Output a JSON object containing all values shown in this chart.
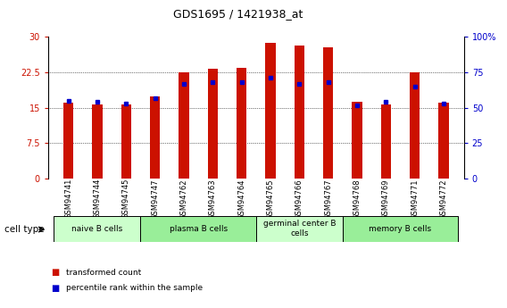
{
  "title": "GDS1695 / 1421938_at",
  "samples": [
    "GSM94741",
    "GSM94744",
    "GSM94745",
    "GSM94747",
    "GSM94762",
    "GSM94763",
    "GSM94764",
    "GSM94765",
    "GSM94766",
    "GSM94767",
    "GSM94768",
    "GSM94769",
    "GSM94771",
    "GSM94772"
  ],
  "transformed_count": [
    16.1,
    15.8,
    15.7,
    17.5,
    22.5,
    23.2,
    23.4,
    28.7,
    28.2,
    27.9,
    16.3,
    15.8,
    22.5,
    16.1
  ],
  "percentile_rank": [
    55,
    54,
    53,
    57,
    67,
    68,
    68,
    71,
    67,
    68,
    52,
    54,
    65,
    53
  ],
  "cell_groups": [
    {
      "label": "naive B cells",
      "start": 0,
      "end": 3,
      "color": "#ccffcc"
    },
    {
      "label": "plasma B cells",
      "start": 3,
      "end": 7,
      "color": "#99ee99"
    },
    {
      "label": "germinal center B\ncells",
      "start": 7,
      "end": 10,
      "color": "#ccffcc"
    },
    {
      "label": "memory B cells",
      "start": 10,
      "end": 14,
      "color": "#99ee99"
    }
  ],
  "ylim_left": [
    0,
    30
  ],
  "ylim_right": [
    0,
    100
  ],
  "yticks_left": [
    0,
    7.5,
    15,
    22.5,
    30
  ],
  "yticks_right": [
    0,
    25,
    50,
    75,
    100
  ],
  "ytick_labels_left": [
    "0",
    "7.5",
    "15",
    "22.5",
    "30"
  ],
  "ytick_labels_right": [
    "0",
    "25",
    "50",
    "75",
    "100%"
  ],
  "bar_color": "#cc1100",
  "dot_color": "#0000cc",
  "background_color": "#ffffff",
  "plot_bg": "#ffffff",
  "legend_tc": "transformed count",
  "legend_pr": "percentile rank within the sample",
  "xlabel_cell_type": "cell type",
  "bar_width": 0.35
}
